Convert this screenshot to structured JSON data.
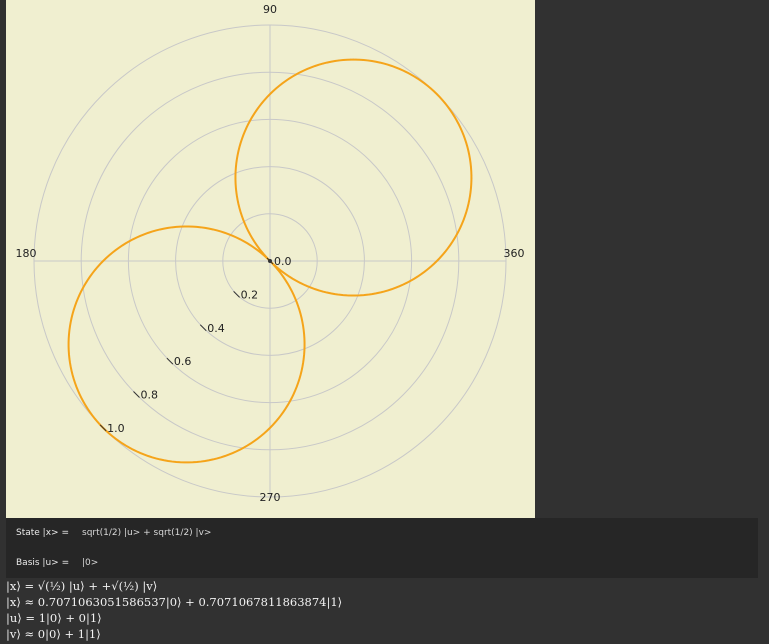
{
  "polar_plot": {
    "angle_labels": {
      "a0": "360",
      "a90": "90",
      "a180": "180",
      "a270": "270"
    },
    "radial_labels": [
      "0.0",
      "0.2",
      "0.4",
      "0.6",
      "0.8",
      "1.0"
    ],
    "colors": {
      "background": "#f0efd0",
      "grid": "#c8c8c8",
      "curve": "#f5a41a",
      "reference": "#1a1ad8"
    }
  },
  "chart_data": {
    "type": "line",
    "subtype": "polar",
    "angle_ticks": [
      0,
      90,
      180,
      270,
      360
    ],
    "radial_range": [
      0,
      1.0
    ],
    "radial_ticks": [
      0.0,
      0.2,
      0.4,
      0.6,
      0.8,
      1.0
    ],
    "series": [
      {
        "style": "solid orange",
        "shape": "two-lobe curve |cos(θ-45°)| with r from 0 to 1.0",
        "lobe_angles_deg": [
          45,
          225
        ],
        "r_max": 1.0
      },
      {
        "style": "dotted blue",
        "shape": "circle through origin",
        "center_angle_deg": 45,
        "diameter": 1.0
      }
    ]
  },
  "controls": {
    "state": {
      "label": "State |x> =",
      "value": "sqrt(1/2) |u> + sqrt(1/2) |v>"
    },
    "basis": {
      "label": "Basis |u> =",
      "value": "|0>"
    }
  },
  "output": {
    "line1": "|x⟩ = √(½) |u⟩ + +√(½) |v⟩",
    "line2": "|x⟩ ≈ 0.7071063051586537|0⟩ + 0.7071067811863874|1⟩",
    "line3": "|u⟩ = 1|0⟩ + 0|1⟩",
    "line4": "|v⟩ ≈ 0|0⟩ + 1|1⟩"
  }
}
